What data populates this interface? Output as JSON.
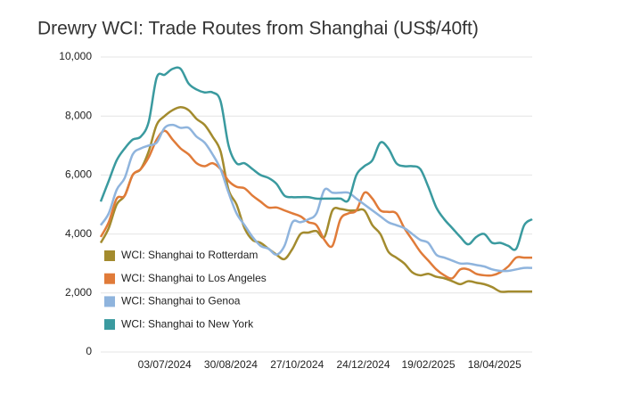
{
  "chart_data": {
    "type": "line",
    "title": "Drewry WCI: Trade Routes from Shanghai (US$/40ft)",
    "x": [
      "2024-05-08",
      "2024-05-15",
      "2024-05-22",
      "2024-05-29",
      "2024-06-05",
      "2024-06-12",
      "2024-06-19",
      "2024-06-26",
      "2024-07-03",
      "2024-07-10",
      "2024-07-17",
      "2024-07-24",
      "2024-07-31",
      "2024-08-07",
      "2024-08-14",
      "2024-08-21",
      "2024-08-28",
      "2024-09-04",
      "2024-09-11",
      "2024-09-18",
      "2024-09-25",
      "2024-10-02",
      "2024-10-09",
      "2024-10-16",
      "2024-10-23",
      "2024-10-30",
      "2024-11-06",
      "2024-11-13",
      "2024-11-20",
      "2024-11-27",
      "2024-12-04",
      "2024-12-11",
      "2024-12-18",
      "2024-12-25",
      "2025-01-01",
      "2025-01-08",
      "2025-01-15",
      "2025-01-22",
      "2025-01-29",
      "2025-02-05",
      "2025-02-12",
      "2025-02-19",
      "2025-02-26",
      "2025-03-05",
      "2025-03-12",
      "2025-03-19",
      "2025-03-26",
      "2025-04-02",
      "2025-04-09",
      "2025-04-16",
      "2025-04-23",
      "2025-04-30",
      "2025-05-07",
      "2025-05-14",
      "2025-05-21"
    ],
    "xlim": [
      "2024-05-08",
      "2025-05-21"
    ],
    "xticks": [
      {
        "value": "2024-07-03",
        "label": "03/07/2024"
      },
      {
        "value": "2024-08-30",
        "label": "30/08/2024"
      },
      {
        "value": "2024-10-27",
        "label": "27/10/2024"
      },
      {
        "value": "2024-12-24",
        "label": "24/12/2024"
      },
      {
        "value": "2025-02-19",
        "label": "19/02/2025"
      },
      {
        "value": "2025-04-18",
        "label": "18/04/2025"
      }
    ],
    "ylim": [
      0,
      10000
    ],
    "yticks": [
      0,
      {
        "value": 2000,
        "label": "2,000"
      },
      {
        "value": 4000,
        "label": "4,000"
      },
      {
        "value": 6000,
        "label": "6,000"
      },
      {
        "value": 8000,
        "label": "8,000"
      },
      {
        "value": 10000,
        "label": "10,000"
      }
    ],
    "grid": true,
    "series": [
      {
        "name": "WCI: Shanghai to Rotterdam",
        "color": "#a38b2e",
        "values": [
          3700,
          4200,
          5000,
          5300,
          6000,
          6200,
          6800,
          7700,
          8000,
          8200,
          8300,
          8200,
          7900,
          7700,
          7300,
          6800,
          5500,
          5000,
          4200,
          3800,
          3700,
          3500,
          3300,
          3150,
          3500,
          4000,
          4050,
          4100,
          3900,
          4800,
          4850,
          4800,
          4800,
          4800,
          4300,
          4000,
          3400,
          3200,
          3000,
          2700,
          2600,
          2650,
          2550,
          2500,
          2400,
          2300,
          2400,
          2350,
          2300,
          2200,
          2050,
          2050,
          2050,
          2050,
          2050
        ]
      },
      {
        "name": "WCI: Shanghai to Los Angeles",
        "color": "#e07b39",
        "values": [
          3900,
          4400,
          5200,
          5300,
          6000,
          6200,
          6600,
          7200,
          7500,
          7200,
          6900,
          6700,
          6400,
          6300,
          6400,
          6200,
          5800,
          5600,
          5550,
          5300,
          5100,
          4900,
          4900,
          4800,
          4700,
          4600,
          4400,
          4300,
          3800,
          3600,
          4500,
          4700,
          4800,
          5400,
          5200,
          4800,
          4750,
          4700,
          4200,
          3800,
          3400,
          3100,
          2800,
          2600,
          2500,
          2800,
          2800,
          2650,
          2600,
          2600,
          2700,
          2900,
          3200,
          3200,
          3200
        ]
      },
      {
        "name": "WCI: Shanghai to Genoa",
        "color": "#8fb4dd",
        "values": [
          4300,
          4700,
          5500,
          5900,
          6700,
          6900,
          7000,
          7100,
          7600,
          7700,
          7600,
          7600,
          7300,
          7100,
          6700,
          6200,
          5400,
          4700,
          4300,
          3900,
          3600,
          3500,
          3300,
          3600,
          4400,
          4400,
          4500,
          4700,
          5500,
          5400,
          5400,
          5400,
          5200,
          5000,
          4800,
          4600,
          4400,
          4300,
          4200,
          4000,
          3800,
          3700,
          3300,
          3200,
          3100,
          3000,
          3000,
          2950,
          2900,
          2800,
          2750,
          2750,
          2800,
          2850,
          2850
        ]
      },
      {
        "name": "WCI: Shanghai to New York",
        "color": "#3a9a9f",
        "values": [
          5100,
          5800,
          6500,
          6900,
          7200,
          7300,
          7800,
          9300,
          9400,
          9600,
          9600,
          9100,
          8900,
          8800,
          8800,
          8500,
          7000,
          6400,
          6400,
          6200,
          6000,
          5900,
          5700,
          5300,
          5250,
          5250,
          5250,
          5200,
          5200,
          5200,
          5200,
          5150,
          6000,
          6300,
          6500,
          7100,
          6900,
          6400,
          6300,
          6300,
          6200,
          5600,
          4900,
          4500,
          4200,
          3900,
          3650,
          3900,
          4000,
          3700,
          3700,
          3600,
          3500,
          4300,
          4500
        ]
      }
    ]
  }
}
